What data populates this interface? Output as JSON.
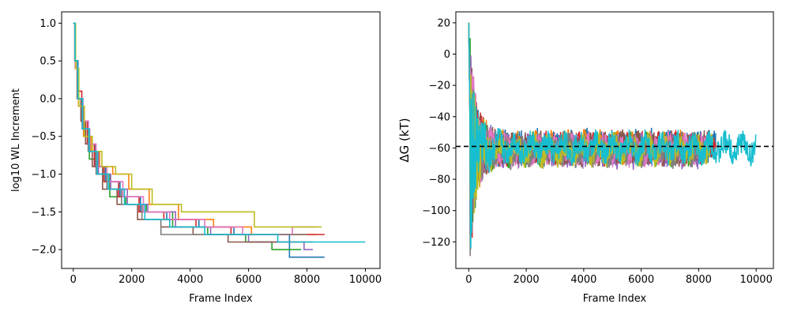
{
  "palette": [
    "#1f77b4",
    "#ff7f0e",
    "#2ca02c",
    "#d62728",
    "#9467bd",
    "#8c564b",
    "#e377c2",
    "#7f7f7f",
    "#bcbd22",
    "#17becf"
  ],
  "chart_data": [
    {
      "type": "line",
      "xlabel": "Frame Index",
      "ylabel": "log10 WL Increment",
      "xlim": [
        -400,
        10500
      ],
      "ylim": [
        -2.25,
        1.15
      ],
      "xticks": [
        0,
        2000,
        4000,
        6000,
        8000,
        10000
      ],
      "yticks": [
        1.0,
        0.5,
        0.0,
        -0.5,
        -1.0,
        -1.5,
        -2.0
      ],
      "ytick_labels": [
        "1.0",
        "0.5",
        "0.0",
        "−0.5",
        "−1.0",
        "−1.5",
        "−2.0"
      ],
      "grid": false,
      "series": [
        {
          "color": "#1f77b4",
          "x": [
            0,
            60,
            150,
            300,
            500,
            750,
            1100,
            1600,
            2300,
            3200,
            4300,
            5500,
            7400,
            8600
          ],
          "y": [
            1.0,
            0.5,
            0.0,
            -0.3,
            -0.6,
            -0.9,
            -1.1,
            -1.3,
            -1.5,
            -1.6,
            -1.7,
            -1.8,
            -2.1,
            -2.1
          ]
        },
        {
          "color": "#ff7f0e",
          "x": [
            0,
            70,
            180,
            350,
            600,
            900,
            1350,
            1900,
            2600,
            3600,
            4800,
            6100,
            8300
          ],
          "y": [
            1.0,
            0.4,
            -0.1,
            -0.5,
            -0.7,
            -0.9,
            -1.0,
            -1.2,
            -1.4,
            -1.6,
            -1.7,
            -1.8,
            -1.8
          ]
        },
        {
          "color": "#2ca02c",
          "x": [
            0,
            60,
            160,
            320,
            550,
            850,
            1250,
            1800,
            2500,
            3400,
            4600,
            5900,
            6800,
            7800
          ],
          "y": [
            1.0,
            0.5,
            0.0,
            -0.4,
            -0.8,
            -1.0,
            -1.3,
            -1.4,
            -1.5,
            -1.7,
            -1.8,
            -1.9,
            -2.0,
            -2.0
          ]
        },
        {
          "color": "#d62728",
          "x": [
            0,
            55,
            140,
            290,
            480,
            720,
            1050,
            1550,
            2250,
            3100,
            4200,
            5400,
            7700,
            8600
          ],
          "y": [
            1.0,
            0.5,
            0.1,
            -0.3,
            -0.6,
            -0.9,
            -1.1,
            -1.3,
            -1.5,
            -1.6,
            -1.7,
            -1.8,
            -1.8,
            -1.8
          ]
        },
        {
          "color": "#9467bd",
          "x": [
            0,
            65,
            165,
            330,
            560,
            860,
            1280,
            1850,
            2550,
            3500,
            4700,
            6000,
            7900,
            8200
          ],
          "y": [
            1.0,
            0.5,
            0.0,
            -0.4,
            -0.7,
            -1.0,
            -1.2,
            -1.4,
            -1.5,
            -1.7,
            -1.8,
            -1.9,
            -2.0,
            -2.0
          ]
        },
        {
          "color": "#8c564b",
          "x": [
            0,
            50,
            130,
            260,
            420,
            650,
            1000,
            1500,
            2200,
            3000,
            4100,
            5300,
            6900,
            8200
          ],
          "y": [
            1.0,
            0.5,
            0.0,
            -0.3,
            -0.6,
            -0.9,
            -1.2,
            -1.4,
            -1.6,
            -1.7,
            -1.8,
            -1.9,
            -1.9,
            -1.9
          ]
        },
        {
          "color": "#e377c2",
          "x": [
            0,
            60,
            150,
            310,
            520,
            780,
            1150,
            1700,
            2400,
            3300,
            4500,
            5800,
            7500,
            8300
          ],
          "y": [
            1.0,
            0.4,
            0.0,
            -0.3,
            -0.6,
            -0.9,
            -1.1,
            -1.3,
            -1.5,
            -1.6,
            -1.7,
            -1.8,
            -1.7,
            -1.7
          ]
        },
        {
          "color": "#7f7f7f",
          "x": [
            0,
            55,
            145,
            300,
            510,
            780,
            1150,
            1650,
            2350,
            3000,
            4100,
            5200,
            7200,
            8000
          ],
          "y": [
            1.0,
            0.5,
            0.0,
            -0.4,
            -0.7,
            -1.0,
            -1.2,
            -1.4,
            -1.6,
            -1.8,
            -1.8,
            -1.8,
            -1.8,
            -1.8
          ]
        },
        {
          "color": "#bcbd22",
          "x": [
            0,
            75,
            190,
            380,
            650,
            980,
            1450,
            2000,
            2700,
            3700,
            5000,
            6200,
            8000,
            8500
          ],
          "y": [
            1.0,
            0.4,
            -0.1,
            -0.5,
            -0.7,
            -0.9,
            -1.0,
            -1.2,
            -1.4,
            -1.5,
            -1.5,
            -1.7,
            -1.7,
            -1.7
          ]
        },
        {
          "color": "#17becf",
          "x": [
            0,
            60,
            155,
            315,
            540,
            820,
            1200,
            1750,
            2450,
            3300,
            4500,
            5700,
            7000,
            10000
          ],
          "y": [
            1.0,
            0.5,
            0.0,
            -0.4,
            -0.7,
            -1.0,
            -1.2,
            -1.4,
            -1.6,
            -1.7,
            -1.8,
            -1.8,
            -1.9,
            -1.9
          ]
        }
      ]
    },
    {
      "type": "line",
      "xlabel": "Frame Index",
      "ylabel": "ΔG (kT)",
      "xlim": [
        -450,
        10600
      ],
      "ylim": [
        -137,
        27
      ],
      "xticks": [
        0,
        2000,
        4000,
        6000,
        8000,
        10000
      ],
      "yticks": [
        20,
        0,
        -20,
        -40,
        -60,
        -80,
        -100,
        -120
      ],
      "ytick_labels": [
        "20",
        "0",
        "−20",
        "−40",
        "−60",
        "−80",
        "−100",
        "−120"
      ],
      "grid": false,
      "reference_line": {
        "y": -59,
        "style": "dashed",
        "color": "#000000"
      },
      "series": [
        {
          "color": "#1f77b4",
          "end": 8600,
          "mean": -59
        },
        {
          "color": "#ff7f0e",
          "end": 8300,
          "mean": -60
        },
        {
          "color": "#2ca02c",
          "end": 7800,
          "mean": -61
        },
        {
          "color": "#d62728",
          "end": 8600,
          "mean": -60
        },
        {
          "color": "#9467bd",
          "end": 8200,
          "mean": -62
        },
        {
          "color": "#8c564b",
          "end": 8200,
          "mean": -60
        },
        {
          "color": "#e377c2",
          "end": 8300,
          "mean": -61
        },
        {
          "color": "#7f7f7f",
          "end": 8000,
          "mean": -62
        },
        {
          "color": "#bcbd22",
          "end": 8500,
          "mean": -61
        },
        {
          "color": "#17becf",
          "end": 10000,
          "mean": -60
        }
      ]
    }
  ]
}
